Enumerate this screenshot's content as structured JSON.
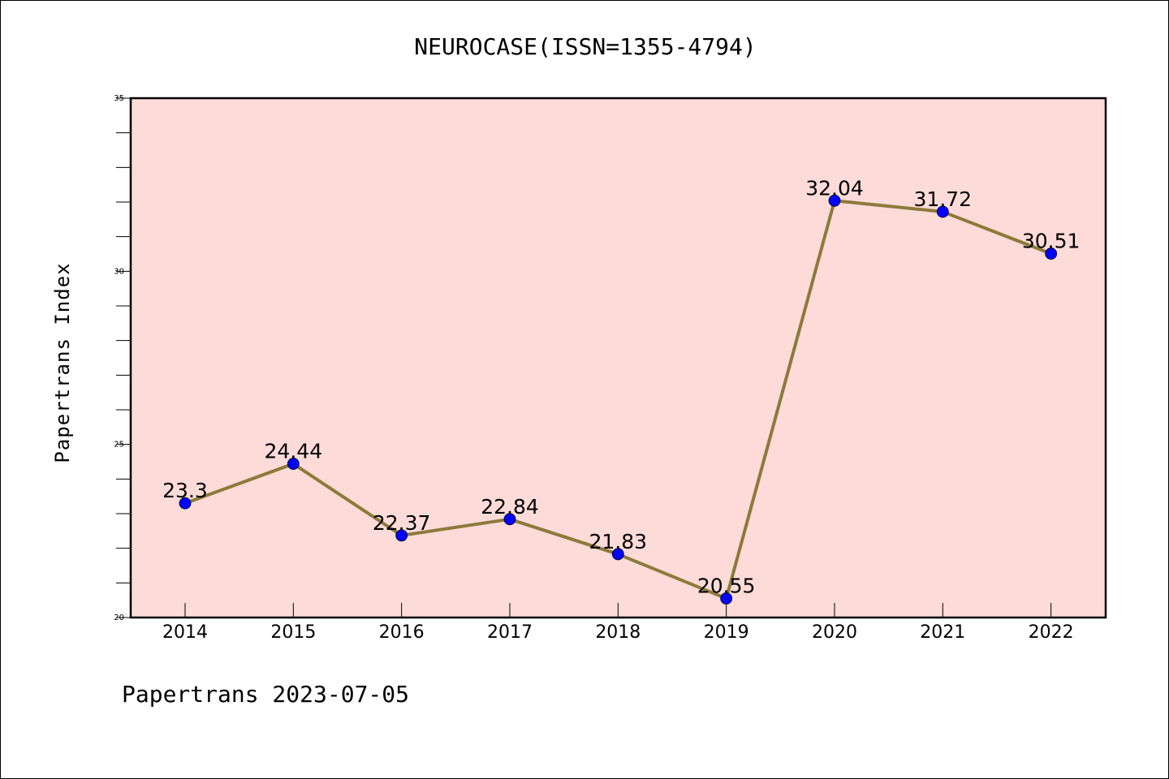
{
  "chart_data": {
    "type": "line",
    "title": "NEUROCASE(ISSN=1355-4794)",
    "xlabel": "",
    "ylabel": "Papertrans Index",
    "footer": "Papertrans 2023-07-05",
    "categories": [
      "2014",
      "2015",
      "2016",
      "2017",
      "2018",
      "2019",
      "2020",
      "2021",
      "2022"
    ],
    "series": [
      {
        "values": [
          23.3,
          24.44,
          22.37,
          22.84,
          21.83,
          20.55,
          32.04,
          31.72,
          30.51
        ],
        "labels": [
          "23.3",
          "24.44",
          "22.37",
          "22.84",
          "21.83",
          "20.55",
          "32.04",
          "31.72",
          "30.51"
        ]
      }
    ],
    "ylim": [
      20,
      35
    ],
    "yticks": [
      20,
      25,
      30,
      35
    ],
    "ytick_labels": [
      "20",
      "25",
      "30",
      "35"
    ],
    "grid": false,
    "colors": {
      "plot_background": "#fddbd8",
      "line": "#8c7a3a",
      "marker": "#0000ff"
    }
  }
}
